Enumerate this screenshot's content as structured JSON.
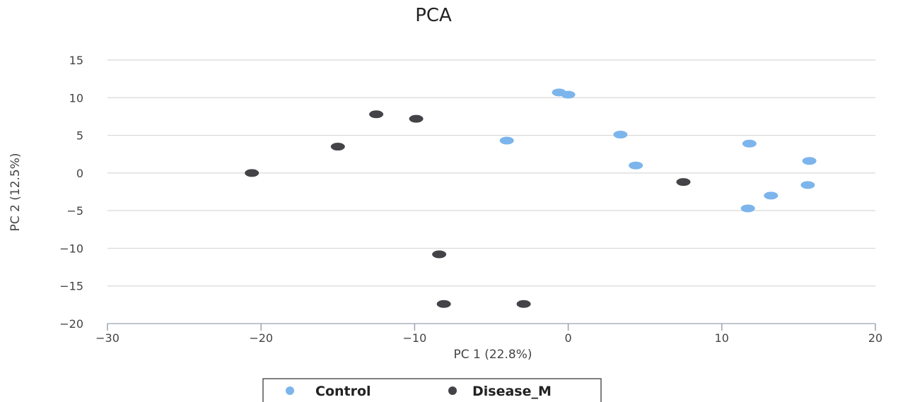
{
  "chart_data": {
    "type": "scatter",
    "title": "PCA",
    "xlabel": "PC 1 (22.8%)",
    "ylabel": "PC 2 (12.5%)",
    "xlim": [
      -30,
      20
    ],
    "ylim": [
      -20,
      15
    ],
    "xticks": [
      -30,
      -20,
      -10,
      0,
      10,
      20
    ],
    "yticks": [
      -20,
      -15,
      -10,
      -5,
      0,
      5,
      10,
      15
    ],
    "xtick_labels": [
      "−30",
      "−20",
      "−10",
      "0",
      "10",
      "20"
    ],
    "ytick_labels": [
      "−20",
      "−15",
      "−10",
      "−5",
      "0",
      "5",
      "10",
      "15"
    ],
    "grid": "horizontal",
    "legend_position": "bottom",
    "series": [
      {
        "name": "Control",
        "color": "#7cb5ec",
        "points": [
          {
            "x": -0.6,
            "y": 10.7
          },
          {
            "x": 0.0,
            "y": 10.4
          },
          {
            "x": -4.0,
            "y": 4.3
          },
          {
            "x": 3.4,
            "y": 5.1
          },
          {
            "x": 4.4,
            "y": 1.0
          },
          {
            "x": 11.8,
            "y": 3.9
          },
          {
            "x": 15.7,
            "y": 1.6
          },
          {
            "x": 15.6,
            "y": -1.6
          },
          {
            "x": 13.2,
            "y": -3.0
          },
          {
            "x": 11.7,
            "y": -4.7
          }
        ]
      },
      {
        "name": "Disease_M",
        "color": "#434348",
        "points": [
          {
            "x": -20.6,
            "y": 0.0
          },
          {
            "x": -15.0,
            "y": 3.5
          },
          {
            "x": -12.5,
            "y": 7.8
          },
          {
            "x": -9.9,
            "y": 7.2
          },
          {
            "x": 7.5,
            "y": -1.2
          },
          {
            "x": -8.4,
            "y": -10.8
          },
          {
            "x": -8.1,
            "y": -17.4
          },
          {
            "x": -2.9,
            "y": -17.4
          }
        ]
      }
    ]
  }
}
